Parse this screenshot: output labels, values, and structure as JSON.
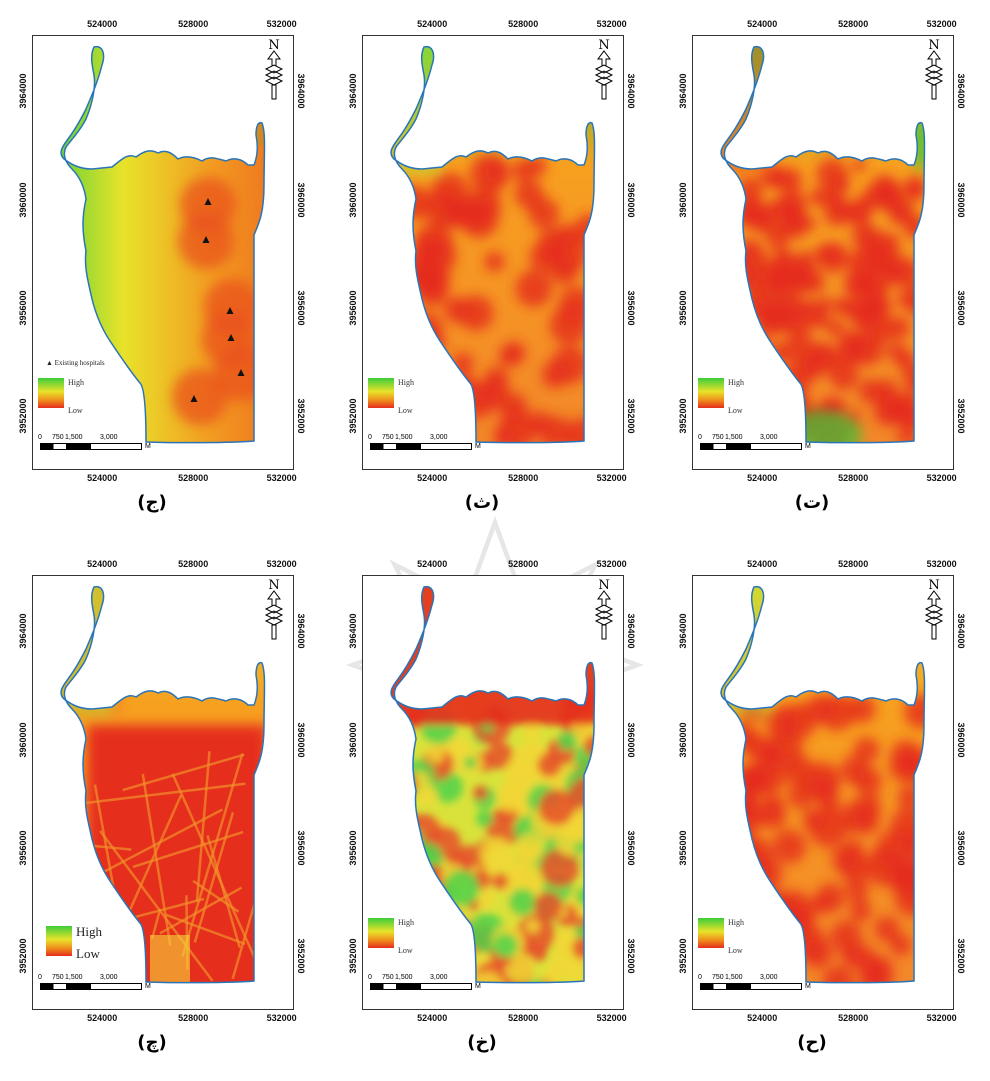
{
  "colors": {
    "high": "#3ccc3a",
    "mid": "#e8e32a",
    "low": "#e52d1d",
    "boundary": "#2a74b8"
  },
  "axis": {
    "x_ticks": [
      "524000",
      "528000",
      "532000"
    ],
    "y_ticks": [
      "3964000",
      "3960000",
      "3956000",
      "3952000"
    ]
  },
  "legend": {
    "high": "High",
    "low": "Low",
    "scale_labels": [
      "0",
      "750",
      "1,500",
      "3,000"
    ],
    "scale_unit": "M",
    "hospitals_label": "Existing hospitals"
  },
  "north_icon": "north-arrow-icon",
  "panels": [
    {
      "id": "jim",
      "caption": "(ج)",
      "pattern": "hospitals"
    },
    {
      "id": "tha",
      "caption": "(ث)",
      "pattern": "smooth-blobs"
    },
    {
      "id": "ta",
      "caption": "(ت)",
      "pattern": "dense-blobs"
    },
    {
      "id": "che",
      "caption": "(چ)",
      "pattern": "roads"
    },
    {
      "id": "kha",
      "caption": "(خ)",
      "pattern": "mosaic"
    },
    {
      "id": "ha",
      "caption": "(ح)",
      "pattern": "blobs"
    }
  ]
}
